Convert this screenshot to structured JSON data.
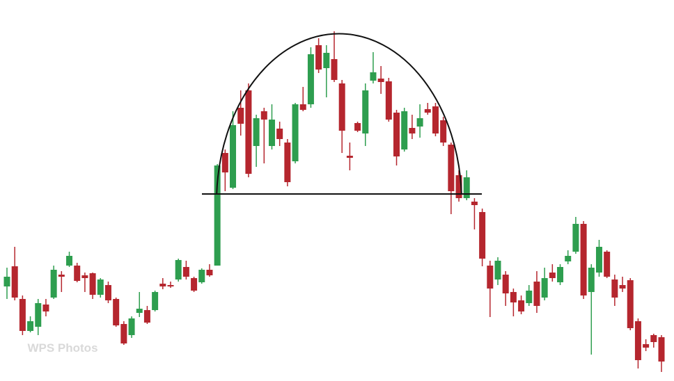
{
  "chart_data": {
    "type": "candlestick",
    "watermark": "WPS Photos",
    "up_color": "#2e9e4f",
    "down_color": "#b5262e",
    "ylim": [
      0,
      548
    ],
    "series": [
      {
        "open": [
          136,
          165,
          118,
          72,
          78,
          110,
          120,
          153,
          166,
          166,
          152,
          155,
          124,
          138,
          118,
          82,
          66,
          98,
          102,
          102,
          140,
          138,
          146,
          164,
          148,
          142,
          160,
          166,
          328,
          278,
          393,
          418,
          338,
          388,
          338,
          363,
          343,
          316,
          398,
          398,
          483,
          450,
          463,
          428,
          324,
          371,
          356,
          432,
          435,
          431,
          386,
          333,
          364,
          366,
          391,
          395,
          375,
          340,
          296,
          263,
          258,
          243,
          166,
          146,
          153,
          128,
          116,
          112,
          143,
          120,
          156,
          142,
          172,
          186,
          226,
          128,
          156,
          186,
          146,
          138,
          145,
          86,
          53,
          66,
          63
        ],
        "high": [
          163,
          193,
          123,
          93,
          118,
          118,
          166,
          158,
          186,
          170,
          156,
          156,
          148,
          143,
          120,
          86,
          93,
          128,
          108,
          130,
          148,
          143,
          176,
          173,
          150,
          162,
          168,
          312,
          333,
          388,
          418,
          428,
          383,
          393,
          398,
          373,
          348,
          400,
          423,
          480,
          493,
          483,
          503,
          433,
          343,
          373,
          428,
          473,
          453,
          436,
          390,
          393,
          383,
          398,
          400,
          400,
          380,
          343,
          303,
          303,
          263,
          248,
          173,
          178,
          158,
          133,
          123,
          138,
          158,
          163,
          168,
          168,
          188,
          236,
          230,
          168,
          203,
          188,
          153,
          150,
          148,
          90,
          60,
          68,
          66
        ],
        "low": [
          118,
          116,
          66,
          70,
          66,
          93,
          118,
          128,
          164,
          142,
          128,
          118,
          120,
          112,
          78,
          52,
          62,
          92,
          82,
          100,
          132,
          134,
          143,
          146,
          128,
          140,
          150,
          166,
          273,
          276,
          353,
          293,
          308,
          313,
          333,
          338,
          280,
          313,
          388,
          393,
          443,
          408,
          430,
          328,
          303,
          358,
          338,
          428,
          413,
          373,
          310,
          330,
          348,
          350,
          383,
          352,
          338,
          240,
          258,
          260,
          218,
          165,
          92,
          138,
          108,
          93,
          96,
          108,
          98,
          116,
          143,
          138,
          168,
          183,
          118,
          38,
          150,
          148,
          108,
          128,
          73,
          18,
          43,
          48,
          13
        ],
        "close": [
          150,
          120,
          72,
          86,
          112,
          100,
          160,
          150,
          180,
          144,
          148,
          124,
          146,
          116,
          80,
          54,
          90,
          104,
          84,
          128,
          136,
          136,
          174,
          150,
          130,
          160,
          152,
          310,
          300,
          368,
          370,
          298,
          378,
          376,
          376,
          348,
          286,
          398,
          390,
          470,
          448,
          472,
          433,
          360,
          321,
          360,
          418,
          444,
          430,
          376,
          323,
          388,
          356,
          378,
          386,
          356,
          343,
          273,
          263,
          293,
          253,
          176,
          133,
          173,
          126,
          113,
          100,
          130,
          108,
          148,
          148,
          164,
          180,
          226,
          123,
          163,
          193,
          150,
          120,
          133,
          76,
          30,
          48,
          56,
          28
        ]
      }
    ]
  }
}
